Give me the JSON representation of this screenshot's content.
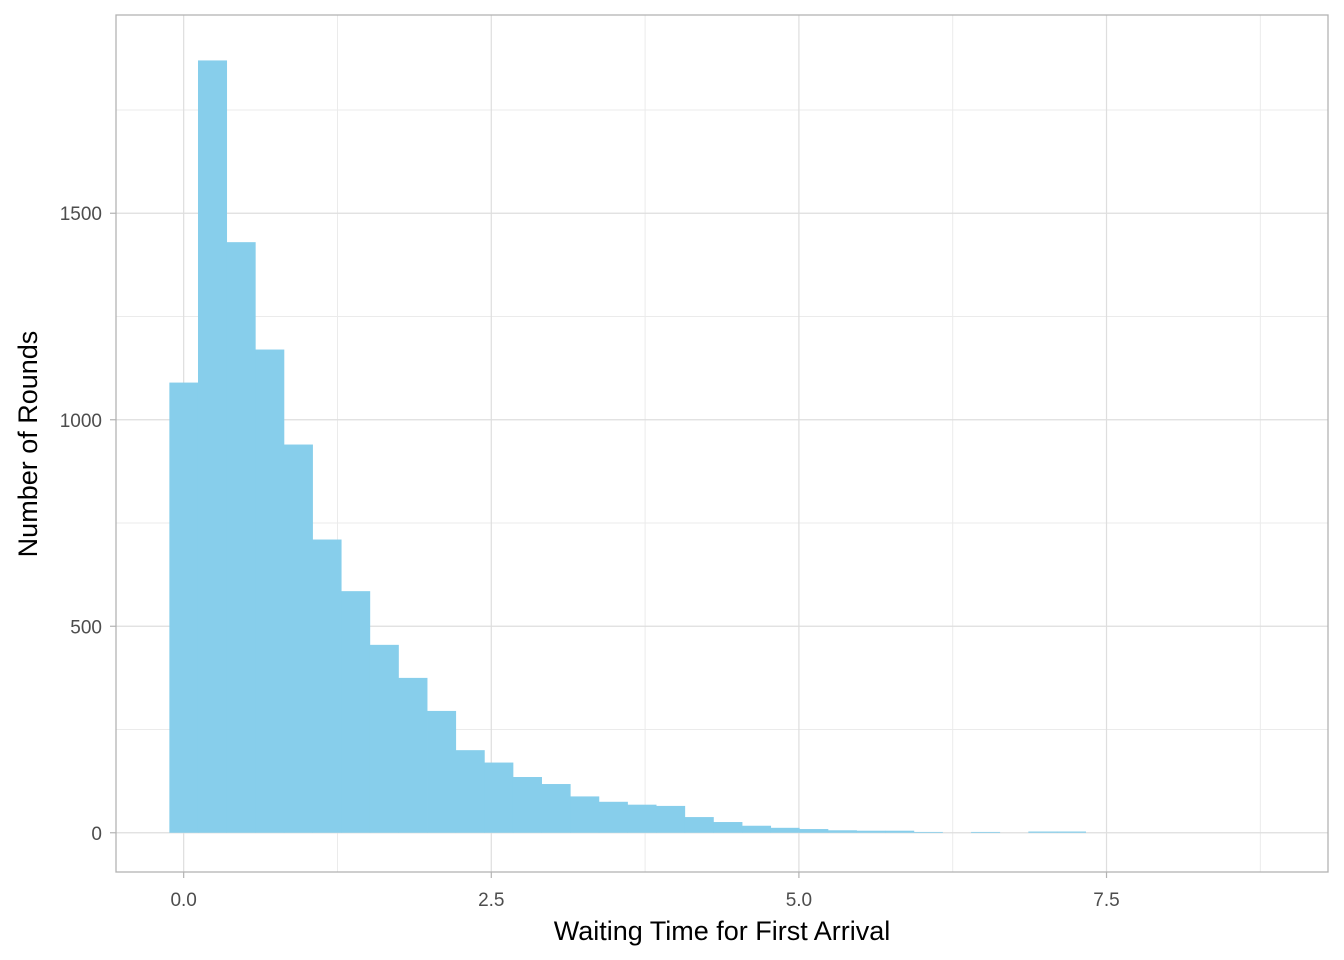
{
  "chart_data": {
    "type": "bar",
    "subtype": "histogram",
    "title": "",
    "xlabel": "Waiting Time for First Arrival",
    "ylabel": "Number of Rounds",
    "xlim": [
      -0.55,
      9.3
    ],
    "ylim": [
      -95,
      1980
    ],
    "x_ticks": [
      0.0,
      2.5,
      5.0,
      7.5
    ],
    "x_tick_labels": [
      "0.0",
      "2.5",
      "5.0",
      "7.5"
    ],
    "y_ticks": [
      0,
      500,
      1000,
      1500
    ],
    "y_tick_labels": [
      "0",
      "500",
      "1000",
      "1500"
    ],
    "bin_width": 0.2327,
    "bin_centers": [
      0.0,
      0.2327,
      0.4654,
      0.6981,
      0.9308,
      1.1635,
      1.3962,
      1.6289,
      1.8616,
      2.0943,
      2.327,
      2.5597,
      2.7924,
      3.0251,
      3.2578,
      3.4905,
      3.7232,
      3.9559,
      4.1886,
      4.4213,
      4.654,
      4.8867,
      5.1194,
      5.3521,
      5.5848,
      5.8175,
      6.0502,
      6.2829,
      6.5156,
      6.7483,
      6.981,
      7.2137,
      7.4464,
      7.6791,
      7.9118,
      8.1445,
      8.3772,
      8.6099,
      8.8426
    ],
    "counts": [
      1090,
      1870,
      1430,
      1170,
      940,
      710,
      585,
      455,
      375,
      295,
      200,
      170,
      135,
      118,
      88,
      75,
      68,
      65,
      38,
      26,
      17,
      12,
      9,
      6,
      5,
      5,
      2,
      0,
      2,
      0,
      3,
      3,
      0,
      0,
      0,
      0,
      0,
      0,
      0
    ],
    "bar_color": "#87CEEB",
    "grid": true,
    "theme": "light",
    "legend": "none"
  }
}
